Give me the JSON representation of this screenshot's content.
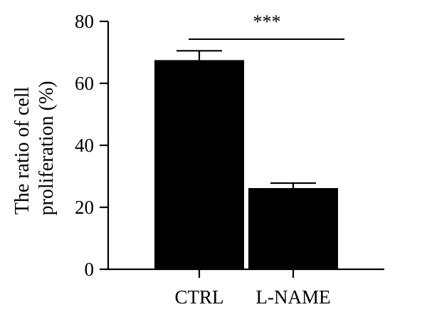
{
  "chart_data": {
    "type": "bar",
    "title": "",
    "ylabel_lines": [
      "The ratio of cell",
      "proliferation (%)"
    ],
    "xlabel": "",
    "categories": [
      "CTRL",
      "L-NAME"
    ],
    "values": [
      67.5,
      26.2
    ],
    "error": [
      3.0,
      1.6
    ],
    "ylim": [
      0,
      80
    ],
    "yticks": [
      0,
      20,
      40,
      60,
      80
    ],
    "significance": {
      "between": [
        0,
        1
      ],
      "label": "***"
    },
    "bar_color": "#000000",
    "grid": false,
    "legend": "none"
  }
}
